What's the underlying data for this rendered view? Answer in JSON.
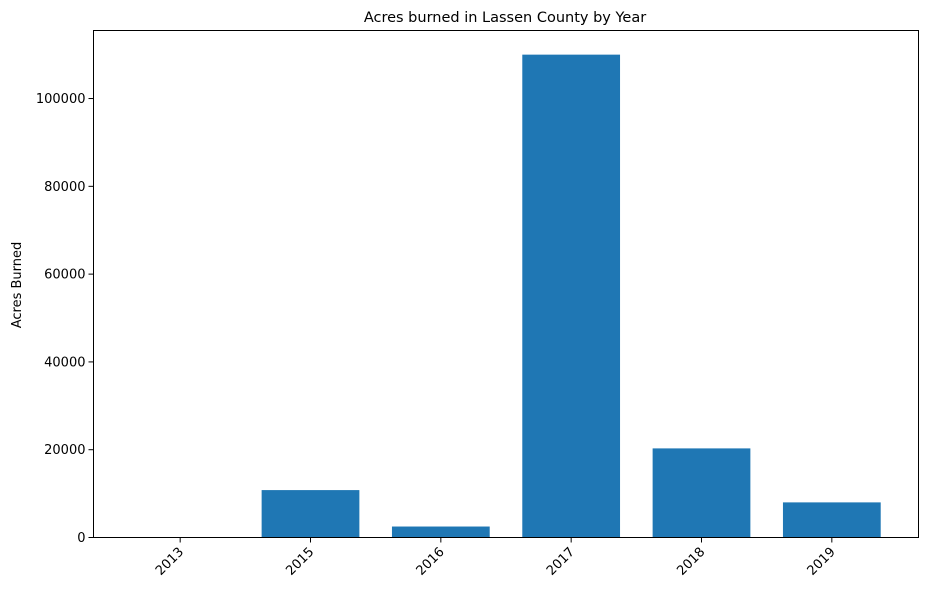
{
  "chart_data": {
    "type": "bar",
    "title": "Acres burned in Lassen County by Year",
    "xlabel": "",
    "ylabel": "Acres Burned",
    "categories": [
      "2013",
      "2015",
      "2016",
      "2017",
      "2018",
      "2019"
    ],
    "values": [
      30,
      10800,
      2500,
      110000,
      20300,
      8000
    ],
    "ylim": [
      0,
      115500
    ],
    "yticks": [
      0,
      20000,
      40000,
      60000,
      80000,
      100000
    ],
    "ytick_labels": [
      "0",
      "20000",
      "40000",
      "60000",
      "80000",
      "100000"
    ],
    "bar_color": "#1f77b4",
    "grid": false,
    "legend": "none",
    "xtick_rotation": "45 degrees"
  }
}
